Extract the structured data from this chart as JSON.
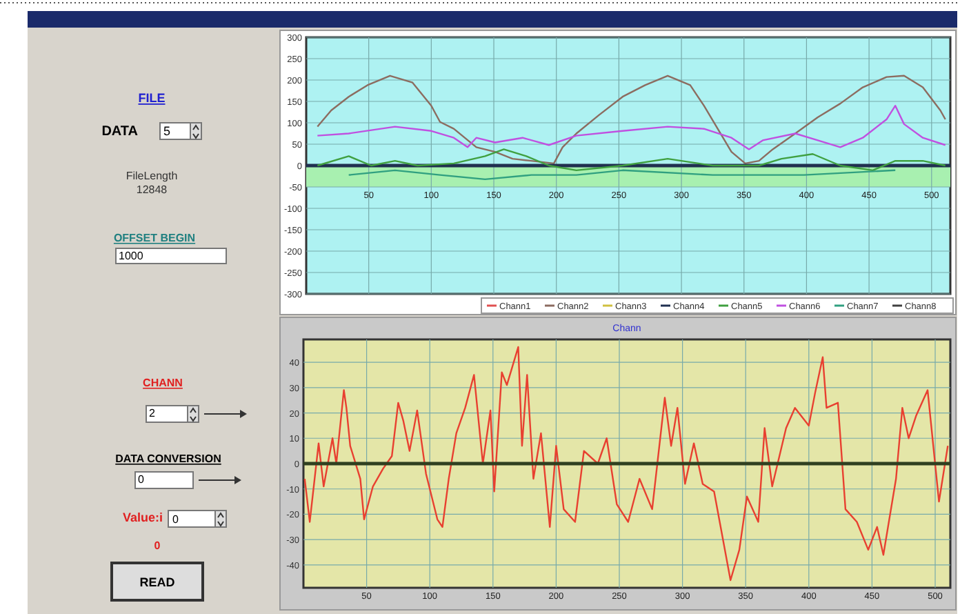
{
  "chart_data": [
    {
      "type": "other",
      "annotations": [
        "FILE",
        "DATA",
        "5",
        "FileLength",
        "12848",
        "OFFSET BEGIN",
        "1000",
        "CHANN",
        "2",
        "DATA CONVERSION",
        "0",
        "Value:i",
        "0",
        "0",
        "READ"
      ]
    },
    {
      "type": "line",
      "xlim": [
        0,
        515
      ],
      "ylim": [
        -300,
        300
      ],
      "xticks": [
        50,
        100,
        150,
        200,
        250,
        300,
        350,
        400,
        450,
        500
      ],
      "yticks": [
        -300,
        -250,
        -200,
        -150,
        -100,
        -50,
        0,
        50,
        100,
        150,
        200,
        250,
        300
      ],
      "grid": true,
      "legend": "bottom right",
      "bands": [
        {
          "axis": "y",
          "from": -50,
          "to": 0,
          "color": "#a8f0b0"
        }
      ],
      "series": [
        {
          "name": "Chann1",
          "color": "#e05050"
        },
        {
          "name": "Chann2",
          "color": "#8c6c60",
          "x": [
            9,
            20,
            34,
            49,
            67,
            85,
            100,
            107,
            118,
            136,
            151,
            165,
            180,
            198,
            205,
            216,
            234,
            253,
            271,
            289,
            307,
            318,
            329,
            340,
            351,
            362,
            373,
            391,
            409,
            427,
            445,
            464,
            478,
            493,
            507,
            511
          ],
          "values": [
            91,
            129,
            161,
            188,
            210,
            194,
            140,
            102,
            86,
            43,
            32,
            16,
            11,
            5,
            43,
            75,
            118,
            161,
            188,
            210,
            188,
            140,
            86,
            32,
            5,
            11,
            38,
            75,
            113,
            145,
            183,
            207,
            210,
            183,
            129,
            108
          ]
        },
        {
          "name": "Chann3",
          "color": "#d0c040"
        },
        {
          "name": "Chann4",
          "color": "#203050",
          "x": [
            0,
            515
          ],
          "values": [
            0,
            0
          ]
        },
        {
          "name": "Chann5",
          "color": "#40a040",
          "x": [
            9,
            34,
            52,
            71,
            89,
            118,
            143,
            158,
            176,
            194,
            216,
            253,
            289,
            325,
            362,
            380,
            405,
            427,
            453,
            471,
            493,
            511
          ],
          "values": [
            0,
            22,
            0,
            11,
            0,
            5,
            22,
            38,
            22,
            0,
            -11,
            0,
            16,
            0,
            0,
            16,
            27,
            0,
            -11,
            11,
            11,
            0
          ]
        },
        {
          "name": "Chann6",
          "color": "#c050e0",
          "x": [
            9,
            34,
            71,
            100,
            118,
            129,
            136,
            151,
            173,
            194,
            216,
            253,
            289,
            318,
            340,
            354,
            365,
            391,
            409,
            427,
            445,
            464,
            471,
            478,
            493,
            511
          ],
          "values": [
            70,
            75,
            91,
            81,
            65,
            43,
            65,
            54,
            65,
            48,
            70,
            81,
            91,
            86,
            65,
            38,
            59,
            75,
            59,
            43,
            65,
            108,
            140,
            97,
            65,
            48
          ]
        },
        {
          "name": "Chann7",
          "color": "#30a080",
          "x": [
            34,
            71,
            107,
            143,
            180,
            216,
            253,
            325,
            398,
            471
          ],
          "values": [
            -22,
            -11,
            -22,
            -32,
            -22,
            -22,
            -11,
            -22,
            -22,
            -11
          ]
        },
        {
          "name": "Chann8",
          "color": "#404040"
        }
      ]
    },
    {
      "type": "line",
      "title": "Chann",
      "xlim": [
        0,
        512
      ],
      "ylim": [
        -49,
        49
      ],
      "xticks": [
        50,
        100,
        150,
        200,
        250,
        300,
        350,
        400,
        450,
        500
      ],
      "yticks": [
        -40,
        -30,
        -20,
        -10,
        0,
        10,
        20,
        30,
        40
      ],
      "grid": true,
      "ref_lines": [
        {
          "axis": "y",
          "value": 0,
          "color": "#304020"
        }
      ],
      "series": [
        {
          "color": "#e84030",
          "x": [
            1,
            5,
            12,
            16,
            23,
            26,
            32,
            34,
            37,
            45,
            48,
            55,
            63,
            70,
            75,
            79,
            84,
            90,
            97,
            106,
            110,
            115,
            121,
            128,
            135,
            142,
            148,
            151,
            157,
            161,
            170,
            173,
            177,
            182,
            188,
            195,
            200,
            206,
            215,
            222,
            233,
            240,
            248,
            257,
            266,
            276,
            286,
            291,
            296,
            302,
            309,
            316,
            325,
            338,
            345,
            351,
            360,
            365,
            371,
            382,
            389,
            400,
            405,
            411,
            414,
            423,
            429,
            438,
            447,
            454,
            459,
            469,
            474,
            479,
            485,
            494,
            503,
            510
          ],
          "values": [
            -6,
            -23,
            8,
            -9,
            10,
            0,
            29,
            22,
            7,
            -6,
            -22,
            -9,
            -2,
            3,
            24,
            17,
            5,
            21,
            -4,
            -22,
            -25,
            -6,
            12,
            22,
            35,
            0,
            21,
            -11,
            36,
            31,
            46,
            7,
            35,
            -6,
            12,
            -25,
            7,
            -18,
            -23,
            5,
            0,
            10,
            -16,
            -23,
            -6,
            -18,
            26,
            7,
            22,
            -8,
            8,
            -8,
            -11,
            -46,
            -34,
            -13,
            -23,
            14,
            -9,
            14,
            22,
            15,
            28,
            42,
            22,
            24,
            -18,
            -23,
            -34,
            -25,
            -36,
            -6,
            22,
            10,
            19,
            29,
            -15,
            7
          ]
        }
      ]
    }
  ]
}
